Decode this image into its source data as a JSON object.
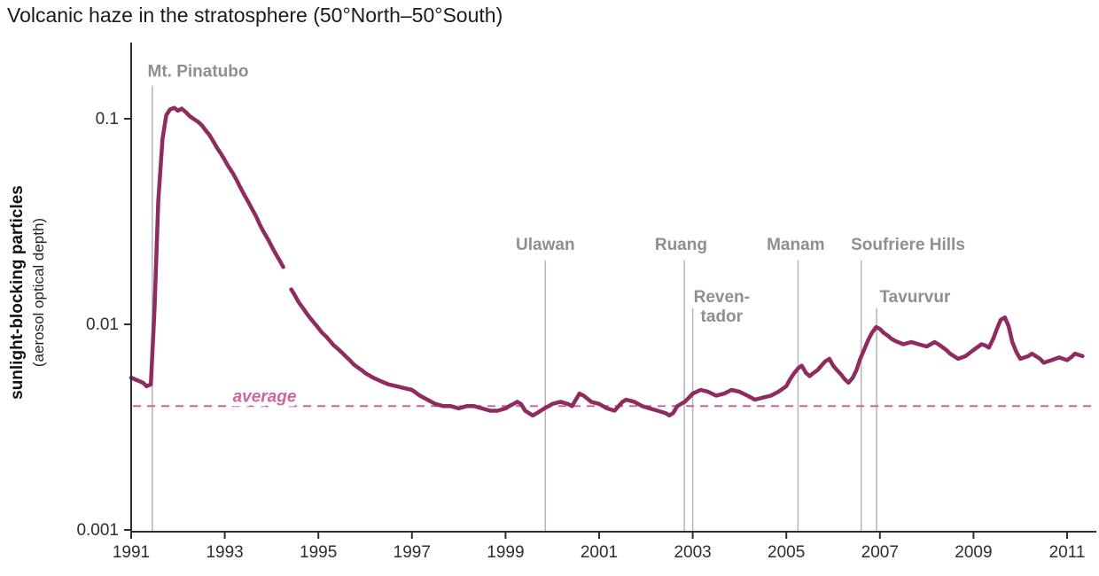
{
  "chart_data": {
    "type": "line",
    "title": "Volcanic haze in the stratosphere (50°North–50°South)",
    "ylabel_bold": "sunlight-blocking particles",
    "ylabel_sub": "(aerosol optical depth)",
    "xlabel": "",
    "yscale": "log",
    "grid": false,
    "legend": "none",
    "xlim": [
      1991,
      2011.6
    ],
    "ylim": [
      0.001,
      0.15
    ],
    "xticks": [
      1991,
      1993,
      1995,
      1997,
      1999,
      2001,
      2003,
      2005,
      2007,
      2009,
      2011
    ],
    "yticks": [
      0.001,
      0.01,
      0.1
    ],
    "ytick_labels": [
      "0.001",
      "0.01",
      "0.1"
    ],
    "average": {
      "value": 0.004,
      "label": "average",
      "label_x": 1993.85,
      "label_y": 0.0042
    },
    "annotations": [
      {
        "label": "Mt. Pinatubo",
        "x": 1991.45,
        "line_top": 0.145,
        "lx": 1991.35,
        "ly": 0.16,
        "anchor": "start"
      },
      {
        "label": "Ulawan",
        "x": 1999.85,
        "line_top": 0.0205,
        "ly": 0.023
      },
      {
        "label": "Ruang",
        "x": 2002.82,
        "line_top": 0.0205,
        "lx": 2002.75,
        "ly": 0.023
      },
      {
        "label": "Reven-\ntador",
        "x": 2003.0,
        "line_top": 0.012,
        "lx": 2003.62,
        "ly": 0.0128
      },
      {
        "label": "Manam",
        "x": 2005.25,
        "line_top": 0.0205,
        "lx": 2005.2,
        "ly": 0.023
      },
      {
        "label": "Soufriere Hills",
        "x": 2006.6,
        "line_top": 0.0205,
        "lx": 2007.6,
        "ly": 0.023
      },
      {
        "label": "Tavurvur",
        "x": 2006.93,
        "line_top": 0.012,
        "lx": 2007.75,
        "ly": 0.0128
      }
    ],
    "colors": {
      "line": "#8e2c60",
      "average": "#d0659c",
      "annotation_text": "#8f8f8f",
      "annotation_line": "#b5b5b5",
      "axis": "#2e2e2e"
    },
    "series": [
      {
        "name": "stratospheric aerosol optical depth",
        "points": [
          [
            1991.0,
            0.0055
          ],
          [
            1991.08,
            0.0054
          ],
          [
            1991.17,
            0.0053
          ],
          [
            1991.25,
            0.0052
          ],
          [
            1991.33,
            0.005
          ],
          [
            1991.42,
            0.0051
          ],
          [
            1991.5,
            0.012
          ],
          [
            1991.58,
            0.04
          ],
          [
            1991.67,
            0.08
          ],
          [
            1991.75,
            0.104
          ],
          [
            1991.83,
            0.111
          ],
          [
            1991.92,
            0.113
          ],
          [
            1992.0,
            0.1095
          ],
          [
            1992.08,
            0.112
          ],
          [
            1992.17,
            0.1075
          ],
          [
            1992.25,
            0.103
          ],
          [
            1992.33,
            0.1
          ],
          [
            1992.42,
            0.097
          ],
          [
            1992.5,
            0.0935
          ],
          [
            1992.58,
            0.0885
          ],
          [
            1992.67,
            0.0835
          ],
          [
            1992.75,
            0.078
          ],
          [
            1992.83,
            0.0725
          ],
          [
            1992.92,
            0.0675
          ],
          [
            1993.0,
            0.063
          ],
          [
            1993.08,
            0.0585
          ],
          [
            1993.17,
            0.0545
          ],
          [
            1993.25,
            0.0505
          ],
          [
            1993.33,
            0.0465
          ],
          [
            1993.42,
            0.0425
          ],
          [
            1993.5,
            0.0395
          ],
          [
            1993.58,
            0.0365
          ],
          [
            1993.67,
            0.0335
          ],
          [
            1993.75,
            0.0305
          ],
          [
            1993.83,
            0.0282
          ],
          [
            1993.92,
            0.026
          ],
          [
            1994.0,
            0.024
          ],
          [
            1994.08,
            0.0222
          ],
          [
            1994.17,
            0.0205
          ],
          [
            1994.25,
            0.019
          ],
          [
            1994.33,
            null
          ],
          [
            1994.42,
            0.0148
          ],
          [
            1994.5,
            0.0138
          ],
          [
            1994.58,
            0.0128
          ],
          [
            1994.67,
            0.012
          ],
          [
            1994.75,
            0.0113
          ],
          [
            1994.83,
            0.0107
          ],
          [
            1994.92,
            0.0101
          ],
          [
            1995.0,
            0.0096
          ],
          [
            1995.08,
            0.0091
          ],
          [
            1995.17,
            0.0087
          ],
          [
            1995.25,
            0.0083
          ],
          [
            1995.33,
            0.0079
          ],
          [
            1995.42,
            0.0076
          ],
          [
            1995.5,
            0.0073
          ],
          [
            1995.58,
            0.007
          ],
          [
            1995.67,
            0.0067
          ],
          [
            1995.75,
            0.0064
          ],
          [
            1995.83,
            0.0062
          ],
          [
            1995.92,
            0.006
          ],
          [
            1996.0,
            0.0058
          ],
          [
            1996.17,
            0.0055
          ],
          [
            1996.33,
            0.0053
          ],
          [
            1996.5,
            0.0051
          ],
          [
            1996.67,
            0.005
          ],
          [
            1996.83,
            0.0049
          ],
          [
            1997.0,
            0.0048
          ],
          [
            1997.17,
            0.0045
          ],
          [
            1997.33,
            0.0043
          ],
          [
            1997.5,
            0.0041
          ],
          [
            1997.67,
            0.004
          ],
          [
            1997.83,
            0.004
          ],
          [
            1998.0,
            0.0039
          ],
          [
            1998.17,
            0.004
          ],
          [
            1998.33,
            0.004
          ],
          [
            1998.5,
            0.0039
          ],
          [
            1998.67,
            0.0038
          ],
          [
            1998.83,
            0.0038
          ],
          [
            1999.0,
            0.0039
          ],
          [
            1999.08,
            0.004
          ],
          [
            1999.17,
            0.0041
          ],
          [
            1999.25,
            0.0042
          ],
          [
            1999.33,
            0.0041
          ],
          [
            1999.42,
            0.0038
          ],
          [
            1999.5,
            0.0037
          ],
          [
            1999.58,
            0.0036
          ],
          [
            1999.67,
            0.0037
          ],
          [
            1999.83,
            0.0039
          ],
          [
            1999.92,
            0.004
          ],
          [
            2000.0,
            0.0041
          ],
          [
            2000.17,
            0.0042
          ],
          [
            2000.33,
            0.0041
          ],
          [
            2000.42,
            0.004
          ],
          [
            2000.58,
            0.0046
          ],
          [
            2000.67,
            0.0045
          ],
          [
            2000.83,
            0.0042
          ],
          [
            2001.0,
            0.0041
          ],
          [
            2001.17,
            0.0039
          ],
          [
            2001.33,
            0.0038
          ],
          [
            2001.5,
            0.0042
          ],
          [
            2001.58,
            0.0043
          ],
          [
            2001.75,
            0.0042
          ],
          [
            2001.92,
            0.004
          ],
          [
            2002.08,
            0.0039
          ],
          [
            2002.25,
            0.0038
          ],
          [
            2002.42,
            0.0037
          ],
          [
            2002.5,
            0.0036
          ],
          [
            2002.58,
            0.0037
          ],
          [
            2002.67,
            0.004
          ],
          [
            2002.75,
            0.0041
          ],
          [
            2002.83,
            0.0042
          ],
          [
            2002.92,
            0.0044
          ],
          [
            2003.0,
            0.0046
          ],
          [
            2003.17,
            0.0048
          ],
          [
            2003.33,
            0.0047
          ],
          [
            2003.5,
            0.0045
          ],
          [
            2003.67,
            0.0046
          ],
          [
            2003.83,
            0.0048
          ],
          [
            2004.0,
            0.0047
          ],
          [
            2004.17,
            0.0045
          ],
          [
            2004.33,
            0.0043
          ],
          [
            2004.5,
            0.0044
          ],
          [
            2004.67,
            0.0045
          ],
          [
            2004.83,
            0.0047
          ],
          [
            2005.0,
            0.005
          ],
          [
            2005.08,
            0.0054
          ],
          [
            2005.17,
            0.0058
          ],
          [
            2005.25,
            0.0061
          ],
          [
            2005.33,
            0.0063
          ],
          [
            2005.42,
            0.0058
          ],
          [
            2005.5,
            0.0056
          ],
          [
            2005.58,
            0.0058
          ],
          [
            2005.67,
            0.006
          ],
          [
            2005.75,
            0.0063
          ],
          [
            2005.83,
            0.0066
          ],
          [
            2005.92,
            0.0068
          ],
          [
            2006.0,
            0.0063
          ],
          [
            2006.08,
            0.006
          ],
          [
            2006.17,
            0.0057
          ],
          [
            2006.25,
            0.0054
          ],
          [
            2006.33,
            0.0052
          ],
          [
            2006.42,
            0.0055
          ],
          [
            2006.5,
            0.006
          ],
          [
            2006.58,
            0.0068
          ],
          [
            2006.67,
            0.0076
          ],
          [
            2006.75,
            0.0084
          ],
          [
            2006.83,
            0.0091
          ],
          [
            2006.92,
            0.0097
          ],
          [
            2007.0,
            0.0095
          ],
          [
            2007.08,
            0.0091
          ],
          [
            2007.17,
            0.0088
          ],
          [
            2007.25,
            0.0085
          ],
          [
            2007.33,
            0.0083
          ],
          [
            2007.5,
            0.008
          ],
          [
            2007.67,
            0.0082
          ],
          [
            2007.83,
            0.008
          ],
          [
            2008.0,
            0.0078
          ],
          [
            2008.17,
            0.0082
          ],
          [
            2008.25,
            0.008
          ],
          [
            2008.42,
            0.0075
          ],
          [
            2008.5,
            0.0072
          ],
          [
            2008.67,
            0.0068
          ],
          [
            2008.83,
            0.007
          ],
          [
            2009.0,
            0.0075
          ],
          [
            2009.17,
            0.008
          ],
          [
            2009.25,
            0.0079
          ],
          [
            2009.33,
            0.0077
          ],
          [
            2009.42,
            0.0085
          ],
          [
            2009.5,
            0.0095
          ],
          [
            2009.58,
            0.0105
          ],
          [
            2009.67,
            0.0108
          ],
          [
            2009.75,
            0.0098
          ],
          [
            2009.83,
            0.0082
          ],
          [
            2009.92,
            0.0073
          ],
          [
            2010.0,
            0.0068
          ],
          [
            2010.17,
            0.007
          ],
          [
            2010.25,
            0.0072
          ],
          [
            2010.42,
            0.0068
          ],
          [
            2010.5,
            0.0065
          ],
          [
            2010.67,
            0.0067
          ],
          [
            2010.83,
            0.0069
          ],
          [
            2011.0,
            0.0067
          ],
          [
            2011.08,
            0.0069
          ],
          [
            2011.17,
            0.0072
          ],
          [
            2011.25,
            0.0071
          ],
          [
            2011.33,
            0.007
          ]
        ]
      }
    ]
  }
}
